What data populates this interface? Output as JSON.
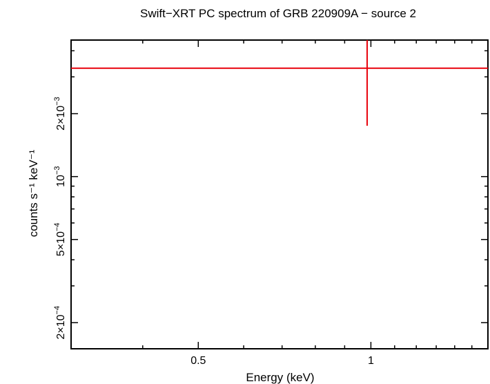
{
  "chart_data": {
    "type": "scatter",
    "title": "Swift−XRT PC spectrum of GRB 220909A − source 2",
    "xlabel": "Energy (keV)",
    "ylabel": "counts s⁻¹ keV⁻¹",
    "x_scale": "log",
    "y_scale": "log",
    "xlim": [
      0.3,
      1.6
    ],
    "ylim": [
      0.00015,
      0.0045
    ],
    "x_ticks": [
      {
        "value": 0.5,
        "label": "0.5"
      },
      {
        "value": 1,
        "label": "1"
      }
    ],
    "y_ticks": [
      {
        "value": 0.0002,
        "mantissa": "2×10",
        "exp": "−4"
      },
      {
        "value": 0.0005,
        "mantissa": "5×10",
        "exp": "−4"
      },
      {
        "value": 0.001,
        "mantissa": "10",
        "exp": "−3"
      },
      {
        "value": 0.002,
        "mantissa": "2×10",
        "exp": "−3"
      }
    ],
    "series": [
      {
        "color": "#e8000b",
        "points": [
          {
            "x": 0.985,
            "xlo": 0.3,
            "xhi": 1.6,
            "y": 0.0033,
            "ylo": 0.00175,
            "yhi": 0.0045
          }
        ]
      }
    ]
  }
}
